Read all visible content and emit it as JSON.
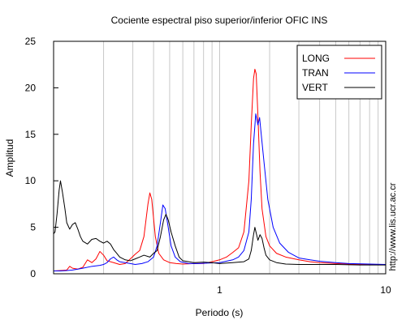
{
  "chart_data": {
    "type": "line",
    "title": "Cociente espectral piso superior/inferior  OFIC INS",
    "xlabel": "Periodo (s)",
    "ylabel": "Amplitud",
    "x_scale": "log",
    "xlim": [
      0.1,
      10
    ],
    "ylim": [
      0,
      25
    ],
    "x_ticks": [
      {
        "value": 1,
        "label": "1"
      },
      {
        "value": 10,
        "label": "10"
      }
    ],
    "y_ticks": [
      0,
      5,
      10,
      15,
      20,
      25
    ],
    "grid": "vertical-log",
    "legend_position": "top-right",
    "side_note": "http://www.lis.ucr.ac.cr",
    "series": [
      {
        "name": "LONG",
        "color": "#ff0000",
        "points": [
          [
            0.1,
            0.3
          ],
          [
            0.11,
            0.35
          ],
          [
            0.12,
            0.4
          ],
          [
            0.125,
            0.8
          ],
          [
            0.13,
            0.6
          ],
          [
            0.14,
            0.5
          ],
          [
            0.15,
            0.7
          ],
          [
            0.16,
            1.5
          ],
          [
            0.17,
            1.2
          ],
          [
            0.18,
            1.6
          ],
          [
            0.19,
            2.4
          ],
          [
            0.2,
            2.0
          ],
          [
            0.21,
            1.4
          ],
          [
            0.23,
            1.2
          ],
          [
            0.25,
            1.0
          ],
          [
            0.27,
            1.1
          ],
          [
            0.29,
            1.6
          ],
          [
            0.31,
            2.1
          ],
          [
            0.33,
            2.5
          ],
          [
            0.35,
            4.0
          ],
          [
            0.37,
            7.5
          ],
          [
            0.38,
            8.7
          ],
          [
            0.39,
            8.0
          ],
          [
            0.41,
            4.0
          ],
          [
            0.43,
            2.2
          ],
          [
            0.46,
            1.5
          ],
          [
            0.5,
            1.2
          ],
          [
            0.55,
            1.1
          ],
          [
            0.6,
            1.05
          ],
          [
            0.7,
            1.1
          ],
          [
            0.8,
            1.1
          ],
          [
            0.9,
            1.3
          ],
          [
            1.0,
            1.5
          ],
          [
            1.1,
            1.8
          ],
          [
            1.2,
            2.3
          ],
          [
            1.3,
            2.8
          ],
          [
            1.4,
            4.5
          ],
          [
            1.5,
            10.0
          ],
          [
            1.55,
            16.0
          ],
          [
            1.6,
            21.0
          ],
          [
            1.63,
            22.0
          ],
          [
            1.66,
            21.5
          ],
          [
            1.7,
            17.0
          ],
          [
            1.75,
            11.0
          ],
          [
            1.8,
            7.0
          ],
          [
            1.9,
            4.0
          ],
          [
            2.0,
            3.0
          ],
          [
            2.2,
            2.2
          ],
          [
            2.5,
            1.8
          ],
          [
            3.0,
            1.5
          ],
          [
            3.5,
            1.3
          ],
          [
            4.0,
            1.2
          ],
          [
            5.0,
            1.1
          ],
          [
            6.0,
            1.05
          ],
          [
            7.0,
            1.0
          ],
          [
            8.0,
            1.0
          ],
          [
            10.0,
            1.0
          ]
        ]
      },
      {
        "name": "TRAN",
        "color": "#0000ff",
        "points": [
          [
            0.1,
            0.3
          ],
          [
            0.11,
            0.3
          ],
          [
            0.12,
            0.35
          ],
          [
            0.13,
            0.4
          ],
          [
            0.14,
            0.5
          ],
          [
            0.15,
            0.6
          ],
          [
            0.17,
            0.8
          ],
          [
            0.19,
            0.9
          ],
          [
            0.2,
            1.0
          ],
          [
            0.21,
            1.2
          ],
          [
            0.22,
            1.6
          ],
          [
            0.23,
            1.8
          ],
          [
            0.24,
            1.5
          ],
          [
            0.25,
            1.3
          ],
          [
            0.27,
            1.2
          ],
          [
            0.29,
            1.1
          ],
          [
            0.31,
            1.0
          ],
          [
            0.34,
            1.1
          ],
          [
            0.37,
            1.3
          ],
          [
            0.4,
            1.8
          ],
          [
            0.42,
            3.0
          ],
          [
            0.44,
            5.5
          ],
          [
            0.455,
            7.4
          ],
          [
            0.47,
            7.0
          ],
          [
            0.49,
            5.0
          ],
          [
            0.51,
            3.0
          ],
          [
            0.54,
            1.8
          ],
          [
            0.58,
            1.3
          ],
          [
            0.65,
            1.1
          ],
          [
            0.75,
            1.1
          ],
          [
            0.85,
            1.15
          ],
          [
            1.0,
            1.2
          ],
          [
            1.2,
            1.5
          ],
          [
            1.3,
            1.8
          ],
          [
            1.4,
            2.5
          ],
          [
            1.5,
            4.5
          ],
          [
            1.55,
            8.0
          ],
          [
            1.6,
            14.0
          ],
          [
            1.65,
            17.2
          ],
          [
            1.7,
            16.0
          ],
          [
            1.74,
            16.8
          ],
          [
            1.78,
            15.0
          ],
          [
            1.85,
            12.0
          ],
          [
            1.95,
            8.0
          ],
          [
            2.1,
            5.0
          ],
          [
            2.3,
            3.3
          ],
          [
            2.6,
            2.3
          ],
          [
            3.0,
            1.7
          ],
          [
            3.5,
            1.5
          ],
          [
            4.0,
            1.35
          ],
          [
            5.0,
            1.2
          ],
          [
            6.0,
            1.1
          ],
          [
            8.0,
            1.05
          ],
          [
            10.0,
            1.0
          ]
        ]
      },
      {
        "name": "VERT",
        "color": "#000000",
        "points": [
          [
            0.1,
            4.3
          ],
          [
            0.102,
            4.5
          ],
          [
            0.105,
            6.5
          ],
          [
            0.108,
            9.0
          ],
          [
            0.11,
            10.0
          ],
          [
            0.113,
            8.8
          ],
          [
            0.117,
            7.0
          ],
          [
            0.12,
            5.5
          ],
          [
            0.125,
            4.8
          ],
          [
            0.13,
            5.3
          ],
          [
            0.135,
            5.5
          ],
          [
            0.14,
            4.8
          ],
          [
            0.145,
            4.0
          ],
          [
            0.15,
            3.5
          ],
          [
            0.16,
            3.2
          ],
          [
            0.17,
            3.7
          ],
          [
            0.18,
            3.8
          ],
          [
            0.19,
            3.5
          ],
          [
            0.2,
            3.3
          ],
          [
            0.21,
            3.5
          ],
          [
            0.22,
            3.2
          ],
          [
            0.23,
            2.6
          ],
          [
            0.24,
            2.2
          ],
          [
            0.25,
            1.8
          ],
          [
            0.27,
            1.5
          ],
          [
            0.29,
            1.4
          ],
          [
            0.31,
            1.6
          ],
          [
            0.33,
            1.8
          ],
          [
            0.35,
            2.0
          ],
          [
            0.38,
            1.8
          ],
          [
            0.4,
            2.2
          ],
          [
            0.42,
            2.5
          ],
          [
            0.44,
            4.0
          ],
          [
            0.46,
            5.8
          ],
          [
            0.475,
            6.4
          ],
          [
            0.49,
            5.8
          ],
          [
            0.51,
            4.5
          ],
          [
            0.54,
            3.0
          ],
          [
            0.57,
            1.8
          ],
          [
            0.6,
            1.4
          ],
          [
            0.7,
            1.2
          ],
          [
            0.8,
            1.25
          ],
          [
            0.9,
            1.2
          ],
          [
            1.0,
            1.1
          ],
          [
            1.1,
            1.15
          ],
          [
            1.2,
            1.2
          ],
          [
            1.3,
            1.25
          ],
          [
            1.4,
            1.3
          ],
          [
            1.5,
            1.6
          ],
          [
            1.55,
            2.5
          ],
          [
            1.6,
            4.2
          ],
          [
            1.63,
            5.0
          ],
          [
            1.66,
            4.4
          ],
          [
            1.7,
            3.6
          ],
          [
            1.75,
            4.2
          ],
          [
            1.8,
            3.8
          ],
          [
            1.85,
            2.8
          ],
          [
            1.9,
            2.0
          ],
          [
            2.0,
            1.5
          ],
          [
            2.2,
            1.2
          ],
          [
            2.5,
            1.05
          ],
          [
            3.0,
            1.0
          ],
          [
            4.0,
            1.0
          ],
          [
            5.0,
            1.0
          ],
          [
            7.0,
            0.95
          ],
          [
            10.0,
            0.95
          ]
        ]
      }
    ]
  }
}
